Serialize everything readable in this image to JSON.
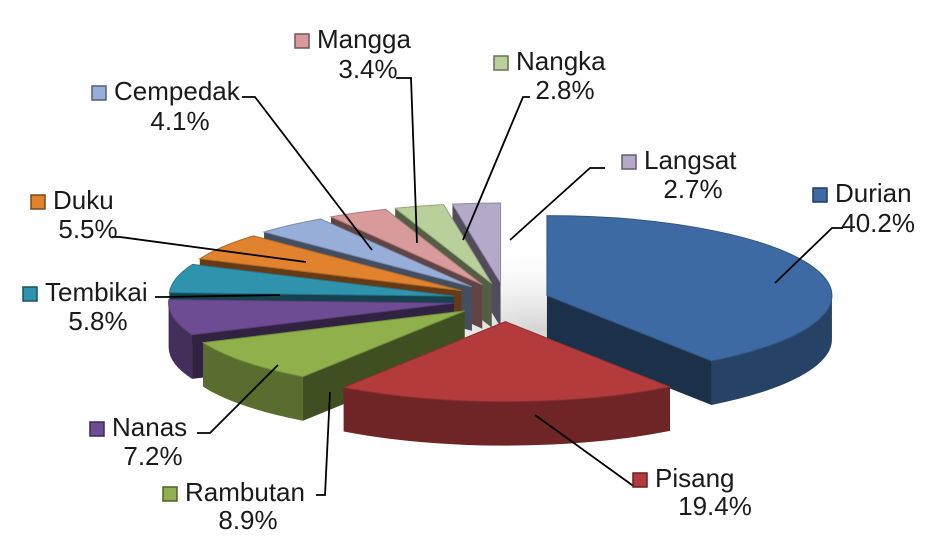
{
  "chart_data": {
    "type": "pie",
    "variant": "3d-exploded",
    "title": "",
    "legend": "labels-with-leader-lines",
    "slices": [
      {
        "name": "Durian",
        "value": 40.2,
        "label": "40.2%",
        "color": "#3d6aa3"
      },
      {
        "name": "Pisang",
        "value": 19.4,
        "label": "19.4%",
        "color": "#b33b3b"
      },
      {
        "name": "Rambutan",
        "value": 8.9,
        "label": "8.9%",
        "color": "#8fb04a"
      },
      {
        "name": "Nanas",
        "value": 7.2,
        "label": "7.2%",
        "color": "#6e4c93"
      },
      {
        "name": "Tembikai",
        "value": 5.8,
        "label": "5.8%",
        "color": "#2f93ad"
      },
      {
        "name": "Duku",
        "value": 5.5,
        "label": "5.5%",
        "color": "#e0822e"
      },
      {
        "name": "Cempedak",
        "value": 4.1,
        "label": "4.1%",
        "color": "#97aed8"
      },
      {
        "name": "Mangga",
        "value": 3.4,
        "label": "3.4%",
        "color": "#d89a9a"
      },
      {
        "name": "Nangka",
        "value": 2.8,
        "label": "2.8%",
        "color": "#b9d09a"
      },
      {
        "name": "Langsat",
        "value": 2.7,
        "label": "2.7%",
        "color": "#b5a9c9"
      }
    ]
  }
}
